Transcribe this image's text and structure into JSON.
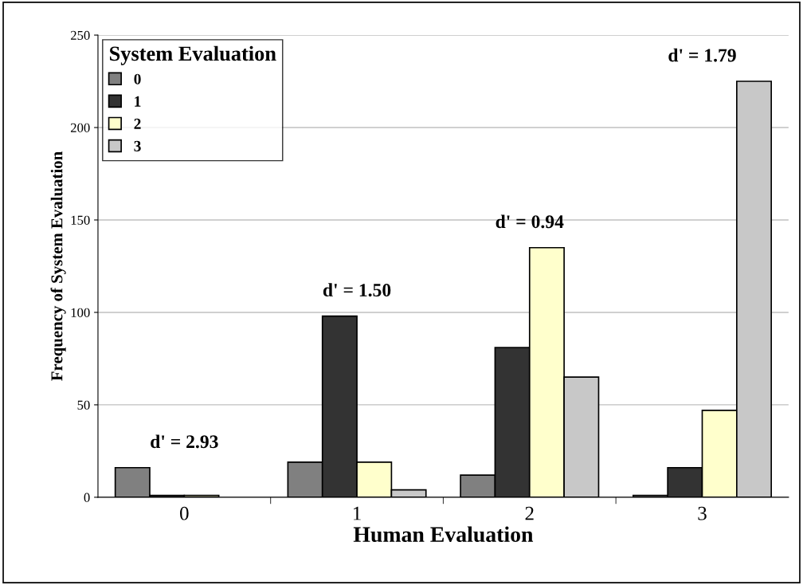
{
  "chart_data": {
    "type": "bar",
    "xlabel": "Human Evaluation",
    "ylabel": "Frequency of System Evaluation",
    "legend_title": "System Evaluation",
    "categories": [
      "0",
      "1",
      "2",
      "3"
    ],
    "series": [
      {
        "name": "0",
        "color": "#808080",
        "values": [
          16,
          19,
          12,
          1
        ]
      },
      {
        "name": "1",
        "color": "#333333",
        "values": [
          1,
          98,
          81,
          16
        ]
      },
      {
        "name": "2",
        "color": "#ffffcc",
        "values": [
          1,
          19,
          135,
          47
        ]
      },
      {
        "name": "3",
        "color": "#c8c8c8",
        "values": [
          null,
          4,
          65,
          225
        ]
      }
    ],
    "ylim": [
      0,
      250
    ],
    "yticks": [
      0,
      50,
      100,
      150,
      200,
      250
    ],
    "grid": "y",
    "legend": "top left",
    "annotations": [
      "d' = 2.93",
      "d' = 1.50",
      "d' = 0.94",
      "d' = 1.79"
    ]
  }
}
